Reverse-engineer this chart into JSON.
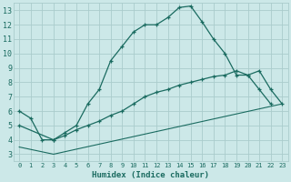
{
  "xlabel": "Humidex (Indice chaleur)",
  "bg_color": "#cce8e8",
  "grid_color": "#aacccc",
  "line_color": "#1a6b60",
  "xlim": [
    -0.5,
    23.5
  ],
  "ylim": [
    2.5,
    13.5
  ],
  "xticks": [
    0,
    1,
    2,
    3,
    4,
    5,
    6,
    7,
    8,
    9,
    10,
    11,
    12,
    13,
    14,
    15,
    16,
    17,
    18,
    19,
    20,
    21,
    22,
    23
  ],
  "yticks": [
    3,
    4,
    5,
    6,
    7,
    8,
    9,
    10,
    11,
    12,
    13
  ],
  "curve1_x": [
    0,
    1,
    2,
    3,
    4,
    5,
    6,
    7,
    8,
    9,
    10,
    11,
    12,
    13,
    14,
    15,
    16,
    17,
    18,
    19,
    20,
    21,
    22
  ],
  "curve1_y": [
    6.0,
    5.5,
    4.0,
    4.0,
    4.5,
    5.0,
    6.5,
    7.5,
    9.5,
    10.5,
    11.5,
    12.0,
    12.0,
    12.5,
    13.2,
    13.3,
    12.2,
    11.0,
    10.0,
    8.5,
    8.5,
    7.5,
    6.5
  ],
  "curve2_x": [
    0,
    3,
    4,
    5,
    6,
    7,
    8,
    9,
    10,
    11,
    12,
    13,
    14,
    15,
    16,
    17,
    18,
    19,
    20,
    21,
    22,
    23
  ],
  "curve2_y": [
    5.0,
    4.0,
    4.3,
    4.7,
    5.0,
    5.3,
    5.7,
    6.0,
    6.5,
    7.0,
    7.3,
    7.5,
    7.8,
    8.0,
    8.2,
    8.4,
    8.5,
    8.8,
    8.5,
    8.8,
    7.5,
    6.5
  ],
  "curve3_x": [
    0,
    3,
    23
  ],
  "curve3_y": [
    3.5,
    3.0,
    6.5
  ]
}
